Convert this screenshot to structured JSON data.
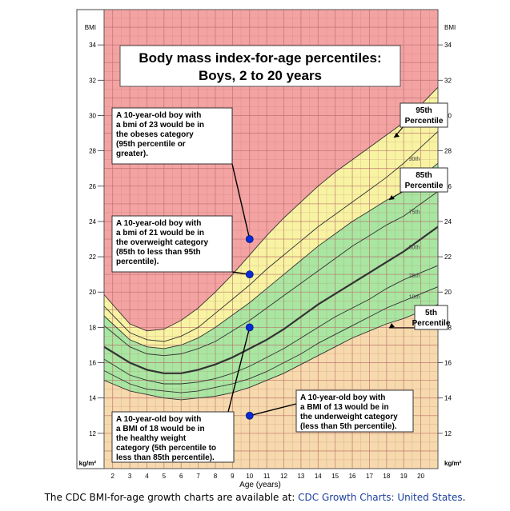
{
  "chart_data": {
    "type": "line",
    "title": "Body mass index-for-age percentiles:",
    "subtitle": "Boys, 2 to 20 years",
    "xlabel": "Age (years)",
    "ylabel_top": "BMI",
    "ylabel_unit": "kg/m²",
    "xlim": [
      1.5,
      21
    ],
    "ylim": [
      10,
      36
    ],
    "x_ticks": [
      "2",
      "3",
      "4",
      "5",
      "6",
      "7",
      "8",
      "9",
      "10",
      "11",
      "12",
      "13",
      "14",
      "15",
      "16",
      "17",
      "18",
      "19",
      "20"
    ],
    "y_ticks": [
      "12",
      "14",
      "16",
      "18",
      "20",
      "22",
      "24",
      "26",
      "28",
      "30",
      "32",
      "34"
    ],
    "colors": {
      "obese": "#f4a3a3",
      "overweight": "#f7f3a2",
      "healthy": "#a8e6a1",
      "underweight": "#f6d9ac",
      "grid": "#b86a6a",
      "marker": "#0a2ad6"
    },
    "x": [
      2,
      3,
      4,
      5,
      6,
      7,
      8,
      9,
      10,
      11,
      12,
      13,
      14,
      15,
      16,
      17,
      18,
      19,
      20
    ],
    "series": [
      {
        "name": "95th",
        "values": [
          19.3,
          18.2,
          17.8,
          17.9,
          18.4,
          19.1,
          20.0,
          21.0,
          22.1,
          23.2,
          24.2,
          25.1,
          26.0,
          26.8,
          27.5,
          28.2,
          28.9,
          29.6,
          30.6
        ]
      },
      {
        "name": "90th",
        "values": [
          18.7,
          17.7,
          17.3,
          17.2,
          17.5,
          18.0,
          18.8,
          19.6,
          20.4,
          21.3,
          22.1,
          22.9,
          23.7,
          24.4,
          25.1,
          25.8,
          26.5,
          27.3,
          28.2
        ]
      },
      {
        "name": "85th",
        "values": [
          18.2,
          17.3,
          16.9,
          16.8,
          17.0,
          17.4,
          18.0,
          18.7,
          19.4,
          20.2,
          21.0,
          21.8,
          22.6,
          23.3,
          24.0,
          24.6,
          25.2,
          25.7,
          26.5
        ]
      },
      {
        "name": "75th",
        "values": [
          17.7,
          16.9,
          16.5,
          16.4,
          16.5,
          16.8,
          17.2,
          17.8,
          18.4,
          19.1,
          19.8,
          20.5,
          21.2,
          21.9,
          22.6,
          23.2,
          23.8,
          24.3,
          25.0
        ]
      },
      {
        "name": "50th",
        "values": [
          16.6,
          16.0,
          15.6,
          15.4,
          15.4,
          15.6,
          15.9,
          16.3,
          16.8,
          17.3,
          17.9,
          18.6,
          19.3,
          19.9,
          20.5,
          21.1,
          21.7,
          22.3,
          23.0
        ]
      },
      {
        "name": "25th",
        "values": [
          15.9,
          15.3,
          15.0,
          14.8,
          14.8,
          14.9,
          15.1,
          15.4,
          15.8,
          16.3,
          16.8,
          17.4,
          18.0,
          18.6,
          19.1,
          19.6,
          20.2,
          20.7,
          21.1
        ]
      },
      {
        "name": "10th",
        "values": [
          15.3,
          14.8,
          14.5,
          14.4,
          14.3,
          14.4,
          14.6,
          14.8,
          15.1,
          15.5,
          16.0,
          16.5,
          17.1,
          17.6,
          18.1,
          18.6,
          19.1,
          19.5,
          19.9
        ]
      },
      {
        "name": "5th",
        "values": [
          14.8,
          14.4,
          14.2,
          14.0,
          13.9,
          14.0,
          14.1,
          14.3,
          14.6,
          15.0,
          15.4,
          15.9,
          16.4,
          16.9,
          17.4,
          17.8,
          18.2,
          18.5,
          18.9
        ]
      }
    ],
    "series_labels": [
      "90th",
      "75th",
      "50th",
      "25th",
      "10th"
    ],
    "callout_labels": [
      {
        "line1": "95th",
        "line2": "Percentile"
      },
      {
        "line1": "85th",
        "line2": "Percentile"
      },
      {
        "line1": "5th",
        "line2": "Percentile"
      }
    ],
    "points": [
      {
        "x": 10,
        "y": 23
      },
      {
        "x": 10,
        "y": 21
      },
      {
        "x": 10,
        "y": 18
      },
      {
        "x": 10,
        "y": 13
      }
    ],
    "annotations": [
      {
        "lines": [
          "A 10-year-old boy with",
          "a bmi of 23 would be in",
          "the obeses category",
          "(95th percentile or",
          "greater)."
        ]
      },
      {
        "lines": [
          "A 10-year-old boy with",
          "a bmi of 21 would be in",
          "the overweight category",
          "(85th to less than 95th",
          "percentile)."
        ]
      },
      {
        "lines": [
          "A 10-year-old boy with",
          "a BMI of 18 would be in",
          "the healthy weight",
          "category (5th percentile to",
          "less than 85th percentile)."
        ]
      },
      {
        "lines": [
          "A 10-year-old boy with",
          "a BMI of 13 would be in",
          "the underweight category",
          "(less than 5th percentile)."
        ]
      }
    ]
  },
  "caption": {
    "text": "The CDC BMI-for-age growth charts are available at: ",
    "link_text": "CDC Growth Charts: United States",
    "suffix": "."
  }
}
